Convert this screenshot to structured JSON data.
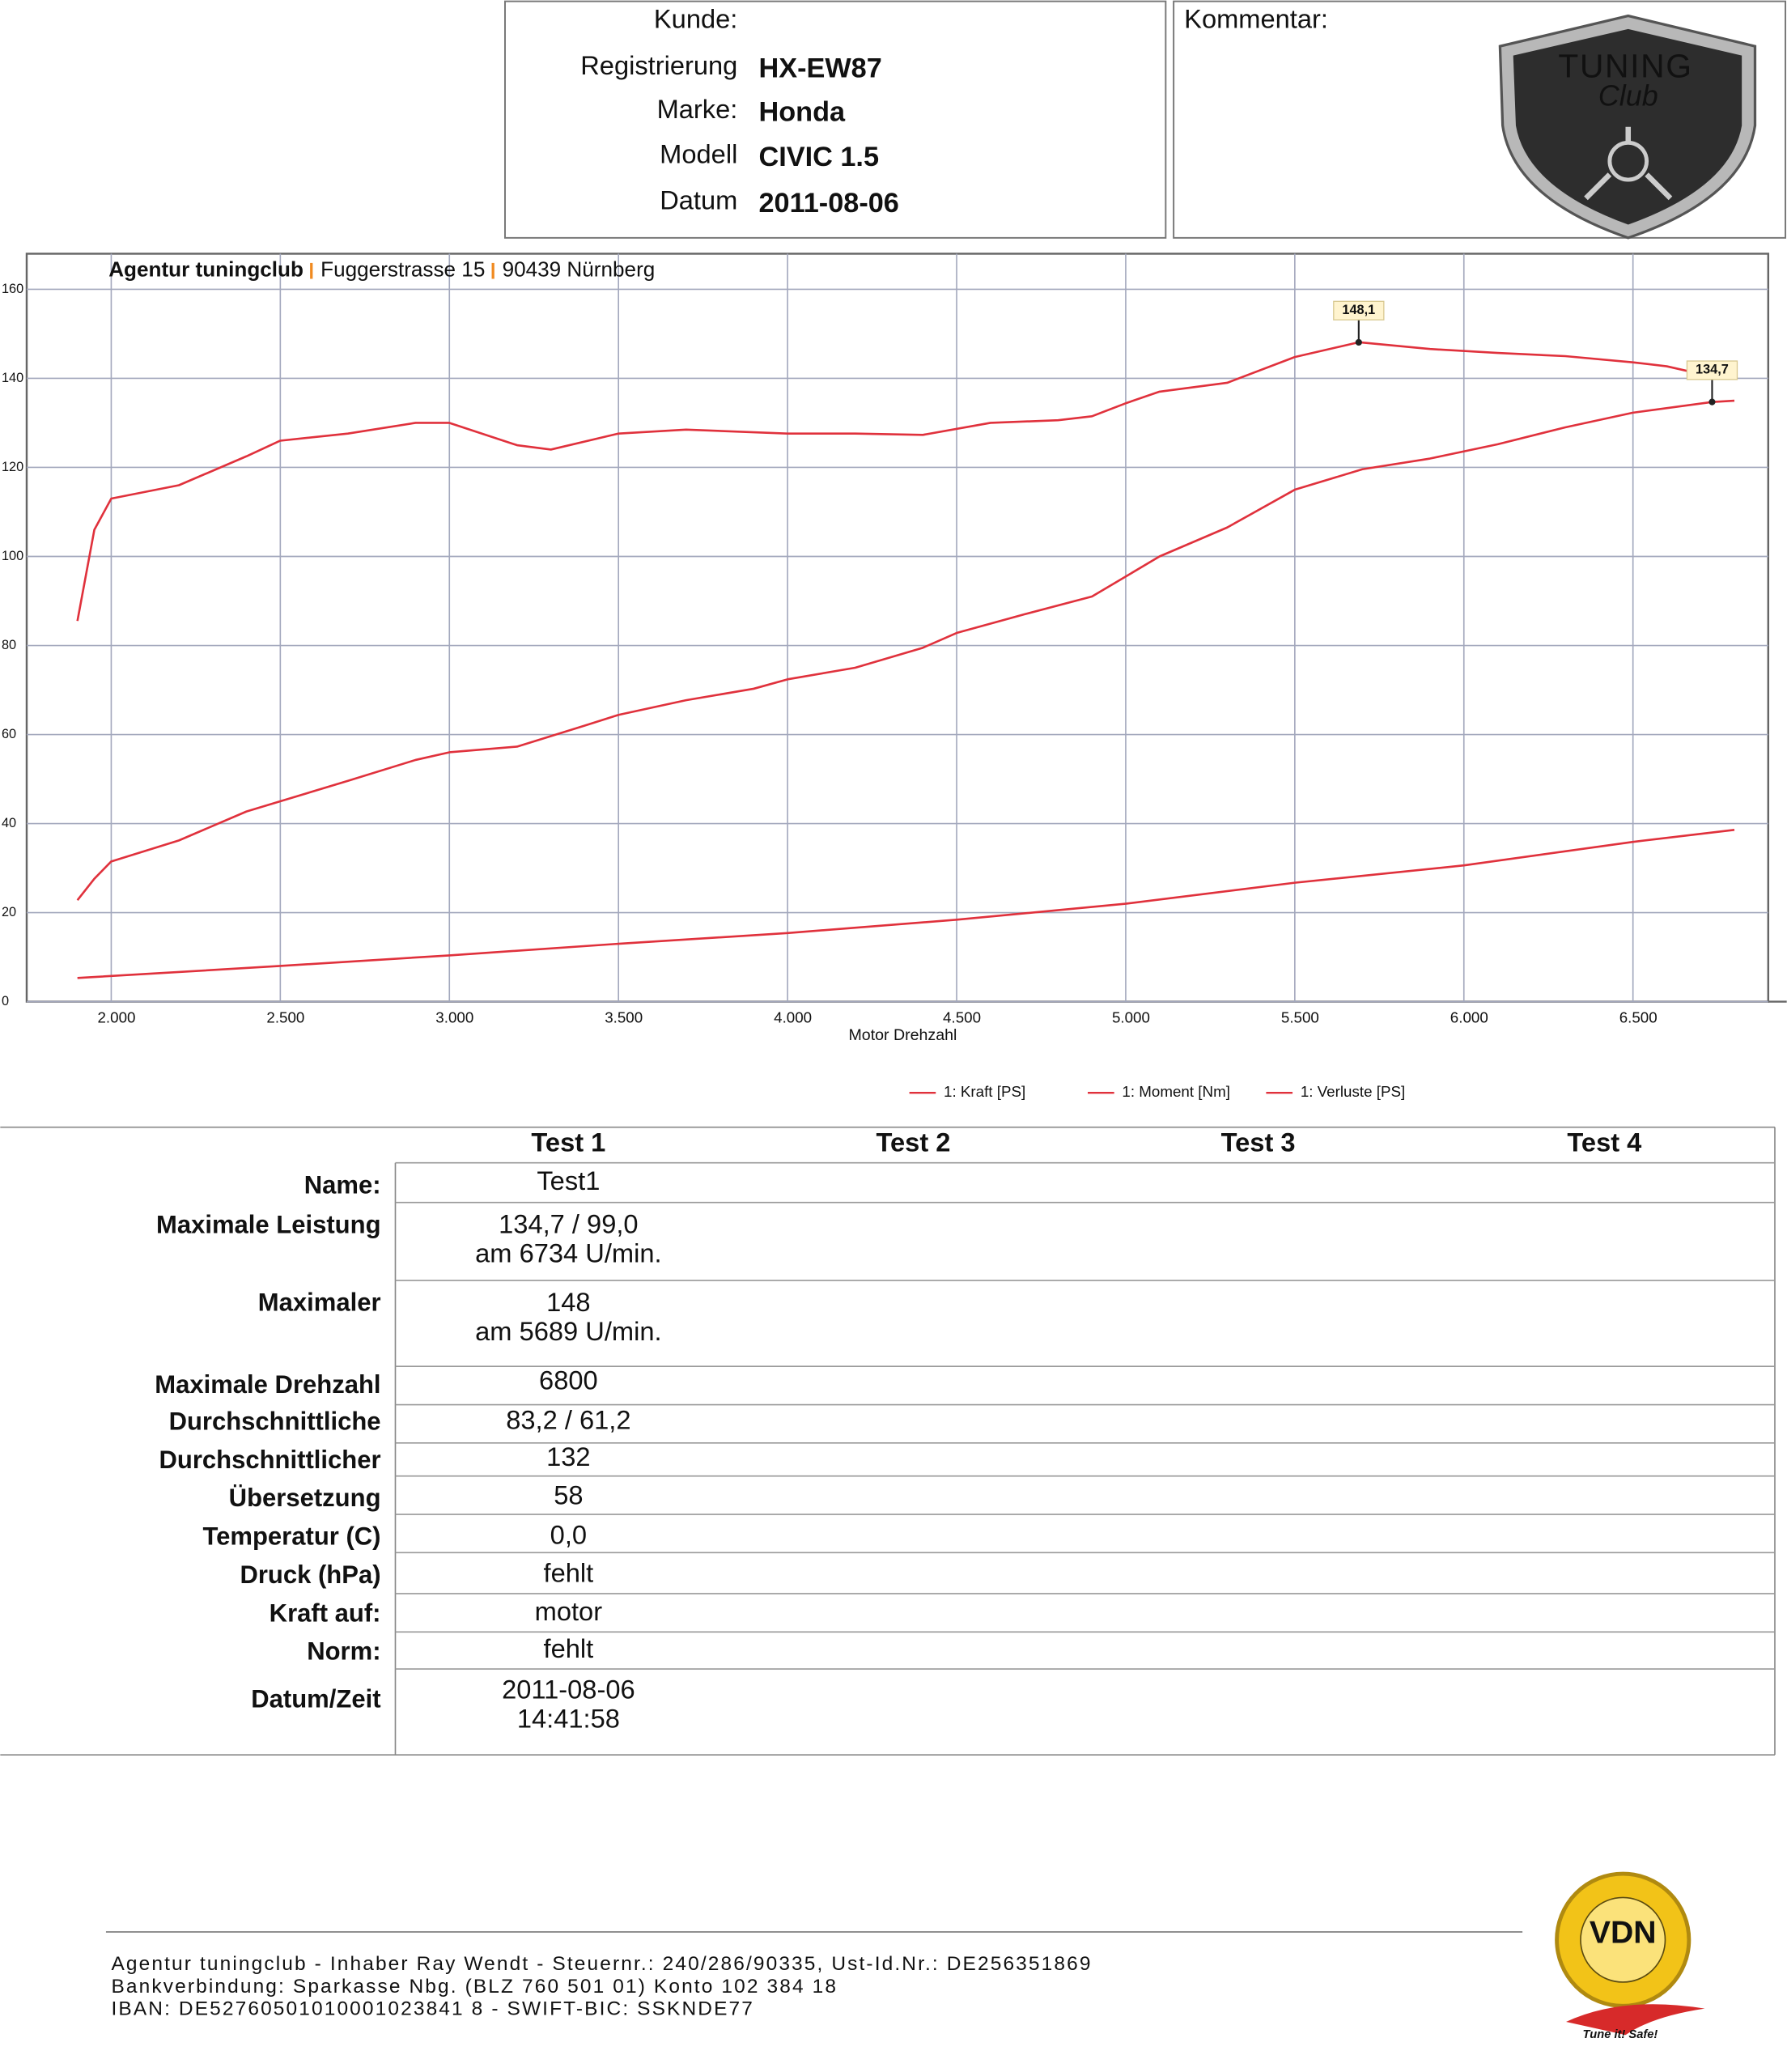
{
  "header": {
    "fields": [
      {
        "label": "Kunde:"
      },
      {
        "label": "Registrierung",
        "value": "HX-EW87"
      },
      {
        "label": "Marke:",
        "value": "Honda"
      },
      {
        "label": "Modell",
        "value": "CIVIC 1.5"
      },
      {
        "label": "Datum",
        "value": "2011-08-06"
      }
    ],
    "comment_label": "Kommentar:",
    "logo": [
      "TUNING",
      "Club"
    ]
  },
  "chart_data": {
    "type": "line",
    "subtitle": [
      "Agentur tuningclub",
      "Fuggerstrasse 15",
      "90439 Nürnberg"
    ],
    "xlabel": "Motor Drehzahl",
    "xlim": [
      1750,
      6900
    ],
    "xticks": [
      {
        "value": 2000,
        "label": "2.000"
      },
      {
        "value": 2500,
        "label": "2.500"
      },
      {
        "value": 3000,
        "label": "3.000"
      },
      {
        "value": 3500,
        "label": "3.500"
      },
      {
        "value": 4000,
        "label": "4.000"
      },
      {
        "value": 4500,
        "label": "4.500"
      },
      {
        "value": 5000,
        "label": "5.000"
      },
      {
        "value": 5500,
        "label": "5.500"
      },
      {
        "value": 6000,
        "label": "6.000"
      },
      {
        "value": 6500,
        "label": "6.500"
      }
    ],
    "ylim": [
      0,
      168
    ],
    "yticks": [
      0,
      20,
      40,
      60,
      80,
      100,
      120,
      140,
      160
    ],
    "grid": true,
    "series": [
      {
        "name": "1: Kraft [PS]",
        "color": "#e0313c",
        "x": [
          1900,
          1950,
          2000,
          2200,
          2400,
          2500,
          2700,
          2900,
          3000,
          3200,
          3400,
          3500,
          3700,
          3900,
          4000,
          4200,
          4400,
          4500,
          4700,
          4900,
          5000,
          5100,
          5300,
          5500,
          5700,
          5900,
          6100,
          6300,
          6500,
          6734,
          6800
        ],
        "values": [
          22.8,
          27.6,
          31.5,
          36.2,
          42.7,
          45,
          49.6,
          54.3,
          56,
          57.3,
          62,
          64.4,
          67.7,
          70.3,
          72.4,
          75,
          79.5,
          82.8,
          87,
          91,
          95.5,
          100,
          106.5,
          115,
          119.6,
          122,
          125.2,
          129,
          132.3,
          134.7,
          135
        ]
      },
      {
        "name": "1: Moment [Nm]",
        "color": "#e0313c",
        "x": [
          1900,
          1950,
          2000,
          2200,
          2400,
          2500,
          2700,
          2900,
          3000,
          3200,
          3300,
          3500,
          3700,
          4000,
          4200,
          4400,
          4600,
          4800,
          4900,
          5000,
          5100,
          5300,
          5500,
          5689,
          5900,
          6100,
          6300,
          6500,
          6600,
          6700,
          6800
        ],
        "values": [
          85.5,
          106,
          113,
          116,
          122.5,
          126,
          127.6,
          130,
          130,
          125,
          124,
          127.6,
          128.5,
          127.6,
          127.6,
          127.3,
          130,
          130.6,
          131.5,
          134.4,
          137,
          139,
          144.8,
          148.1,
          146.6,
          145.7,
          145,
          143.6,
          142.7,
          141,
          141
        ]
      },
      {
        "name": "1: Verluste [PS]",
        "color": "#e0313c",
        "x": [
          1900,
          2500,
          3000,
          3500,
          4000,
          4500,
          5000,
          5500,
          6000,
          6500,
          6800
        ],
        "values": [
          5.3,
          8,
          10.4,
          13,
          15.4,
          18.4,
          22,
          26.7,
          30.6,
          35.9,
          38.6
        ]
      }
    ],
    "annotations": [
      {
        "x": 5689,
        "y": 148.1,
        "label": "148,1"
      },
      {
        "x": 6734,
        "y": 134.7,
        "label": "134,7"
      }
    ]
  },
  "table": {
    "columns": [
      "Test 1",
      "Test 2",
      "Test 3",
      "Test 4"
    ],
    "rows": [
      {
        "label": "Name:",
        "lines": [
          "Test1"
        ]
      },
      {
        "label": "Maximale Leistung",
        "lines": [
          "134,7 / 99,0",
          "am 6734 U/min."
        ]
      },
      {
        "label": "Maximaler",
        "lines": [
          "148",
          "am 5689 U/min."
        ]
      },
      {
        "label": "Maximale Drehzahl",
        "lines": [
          "6800"
        ]
      },
      {
        "label": "Durchschnittliche",
        "lines": [
          "83,2 / 61,2"
        ]
      },
      {
        "label": "Durchschnittlicher",
        "lines": [
          "132"
        ]
      },
      {
        "label": "Übersetzung",
        "lines": [
          "58"
        ]
      },
      {
        "label": "Temperatur (C)",
        "lines": [
          "0,0"
        ]
      },
      {
        "label": "Druck (hPa)",
        "lines": [
          "fehlt"
        ]
      },
      {
        "label": "Kraft auf:",
        "lines": [
          "motor"
        ]
      },
      {
        "label": "Norm:",
        "lines": [
          "fehlt"
        ]
      },
      {
        "label": "Datum/Zeit",
        "lines": [
          "2011-08-06",
          "14:41:58"
        ]
      }
    ]
  },
  "footer": {
    "lines": [
      "Agentur tuningclub - Inhaber Ray Wendt - Steuernr.: 240/286/90335, Ust-Id.Nr.: DE256351869",
      "Bankverbindung: Sparkasse Nbg. (BLZ 760 501 01) Konto 102 384 18",
      "IBAN: DE52760501010001023841 8 - SWIFT-BIC: SSKNDE77"
    ],
    "badge": "VDN",
    "slogan": "Tune it! Safe!"
  }
}
